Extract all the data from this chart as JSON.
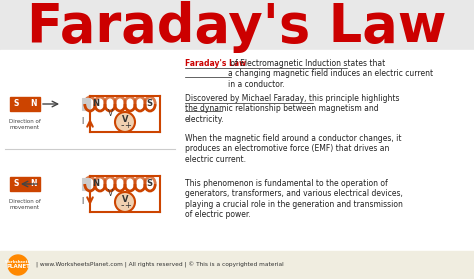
{
  "title": "Faraday's Law",
  "title_color": "#cc0000",
  "title_fontsize": 38,
  "bg_color_top": "#e8e8e8",
  "bg_color_main": "#f5f5f0",
  "bg_color_footer": "#f0ede0",
  "magnet_color": "#cc4400",
  "magnet_text_color": "white",
  "coil_color": "#cc4400",
  "text_color": "#222222",
  "red_text": "#cc0000",
  "footer_text": "| www.WorksheetsPlanet.com | All rights reserved | © This is a copyrighted material",
  "para1_red": "Faraday's Law",
  "para1_rest": " of Electromagnetic Induction states that a changing magnetic field induces an electric current in a conductor.",
  "para1_underline": "a changing magnetic field induces an electric current in a conductor.",
  "para2": "Discovered by Michael Faraday, this principle highlights the dynamic relationship between magnetism and electricity.",
  "para2_underline": "dynamic relationship between magnetism and electricity.",
  "para3": "When the magnetic field around a conductor changes, it produces an electromotive force (EMF) that drives an electric current.",
  "para4": "This phenomenon is fundamental to the operation of generators, transformers, and various electrical devices, playing a crucial role in the generation and transmission of electric power.",
  "dir_label": "Direction of\nmovement"
}
